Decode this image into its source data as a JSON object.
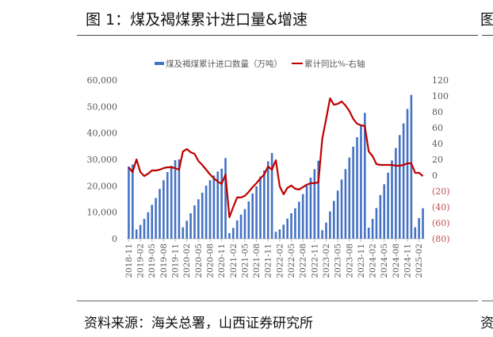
{
  "header": {
    "title": "图 1：煤及褐煤累计进口量&增速",
    "next_figure_clip": "图"
  },
  "footer": {
    "source": "资料来源：海关总署，山西证券研究所",
    "next_source_clip": "资"
  },
  "colors": {
    "bar": "#4472C4",
    "line": "#C00000",
    "right_tick": "#C0504D",
    "axis_text": "#595959"
  },
  "chart_data": {
    "type": "bar+line",
    "title": "图 1：煤及褐煤累计进口量&增速",
    "legend": [
      "煤及褐煤累计进口数量（万吨）",
      "累计同比%-右轴"
    ],
    "legend_position": "top",
    "y_left": {
      "lim": [
        0,
        60000
      ],
      "ticks": [
        "0",
        "10,000",
        "20,000",
        "30,000",
        "40,000",
        "50,000",
        "60,000"
      ]
    },
    "y_right": {
      "lim": [
        -80,
        120
      ],
      "ticks": [
        "(80)",
        "(60)",
        "(40)",
        "(20)",
        "0",
        "20",
        "40",
        "60",
        "80",
        "100",
        "120"
      ]
    },
    "x": [
      "2018-11",
      "2018-12",
      "2019-01",
      "2019-02",
      "2019-03",
      "2019-04",
      "2019-05",
      "2019-06",
      "2019-07",
      "2019-08",
      "2019-09",
      "2019-10",
      "2019-11",
      "2019-12",
      "2020-01",
      "2020-02",
      "2020-03",
      "2020-04",
      "2020-05",
      "2020-06",
      "2020-07",
      "2020-08",
      "2020-09",
      "2020-10",
      "2020-11",
      "2020-12",
      "2021-01",
      "2021-02",
      "2021-03",
      "2021-04",
      "2021-05",
      "2021-06",
      "2021-07",
      "2021-08",
      "2021-09",
      "2021-10",
      "2021-11",
      "2021-12",
      "2022-01",
      "2022-02",
      "2022-03",
      "2022-04",
      "2022-05",
      "2022-06",
      "2022-07",
      "2022-08",
      "2022-09",
      "2022-10",
      "2022-11",
      "2022-12",
      "2023-01",
      "2023-02",
      "2023-03",
      "2023-04",
      "2023-05",
      "2023-06",
      "2023-07",
      "2023-08",
      "2023-09",
      "2023-10",
      "2023-11",
      "2023-12",
      "2024-01",
      "2024-02",
      "2024-03",
      "2024-04",
      "2024-05",
      "2024-06",
      "2024-07",
      "2024-08",
      "2024-09",
      "2024-10",
      "2024-11",
      "2024-12",
      "2025-01",
      "2025-02",
      "2025-03"
    ],
    "x_tick_every": 3,
    "series": [
      {
        "name": "煤及褐煤累计进口数量（万吨）",
        "type": "bar",
        "axis": "left",
        "values": [
          27300,
          28100,
          3500,
          5200,
          7500,
          10000,
          12800,
          15400,
          18800,
          22100,
          25200,
          27600,
          29700,
          30000,
          4300,
          6800,
          9600,
          12600,
          14900,
          17400,
          20100,
          22100,
          23900,
          25400,
          26500,
          30500,
          2100,
          4100,
          6900,
          9100,
          11200,
          14100,
          17100,
          19800,
          23500,
          25800,
          29300,
          32400,
          2600,
          3500,
          5300,
          7600,
          9600,
          11500,
          14000,
          16900,
          20000,
          23100,
          26300,
          29500,
          3200,
          6100,
          10300,
          14300,
          18200,
          22400,
          26300,
          30700,
          34800,
          38400,
          42800,
          47600,
          4200,
          7500,
          11600,
          16500,
          20600,
          25000,
          29600,
          34300,
          39200,
          43600,
          49100,
          54400,
          4300,
          7800,
          11500
        ]
      },
      {
        "name": "累计同比%-右轴",
        "type": "line",
        "axis": "right",
        "values": [
          10,
          4,
          20,
          4,
          -1,
          2,
          6,
          6,
          7,
          9,
          10,
          10,
          9,
          7,
          30,
          33,
          29,
          27,
          18,
          13,
          7,
          1,
          -4,
          -8,
          -11,
          1,
          -53,
          -40,
          -28,
          -28,
          -26,
          -21,
          -15,
          -10,
          -4,
          1,
          11,
          7,
          19,
          -14,
          -24,
          -16,
          -13,
          -17,
          -18,
          -15,
          -12,
          -10,
          -10,
          -9,
          46,
          71,
          97,
          89,
          90,
          93,
          88,
          81,
          71,
          65,
          63,
          62,
          30,
          24,
          14,
          13,
          13,
          13,
          13,
          12,
          12,
          13,
          15,
          15,
          3,
          3,
          -1
        ]
      }
    ]
  }
}
